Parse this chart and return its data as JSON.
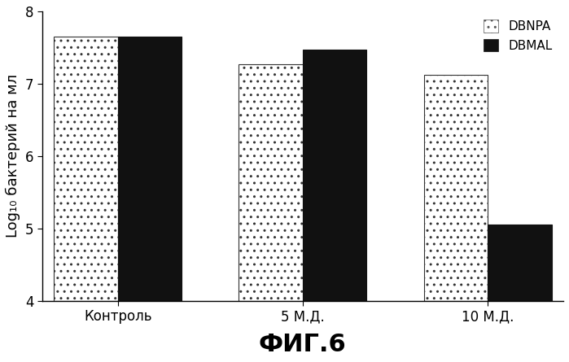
{
  "categories": [
    "Контроль",
    "5 М.Д.",
    "10 М.Д."
  ],
  "dbnpa_values": [
    7.65,
    7.27,
    7.12
  ],
  "dbmal_values": [
    7.65,
    7.47,
    5.05
  ],
  "ylim": [
    4,
    8
  ],
  "yticks": [
    4,
    5,
    6,
    7,
    8
  ],
  "ylabel": "Log₁₀ бактерий на мл",
  "title": "ФИГ.6",
  "legend_dbnpa": "DBNPA",
  "legend_dbmal": "DBMAL",
  "bar_width": 0.38,
  "x_positions": [
    0.0,
    1.1,
    2.2
  ],
  "dbnpa_hatch": "..",
  "dbnpa_facecolor": "#ffffff",
  "dbnpa_edgecolor": "#333333",
  "dbmal_facecolor": "#111111",
  "dbmal_edgecolor": "#111111",
  "background_color": "#ffffff",
  "title_fontsize": 22,
  "ylabel_fontsize": 13,
  "tick_fontsize": 12,
  "legend_fontsize": 11,
  "xlim": [
    -0.45,
    2.65
  ]
}
